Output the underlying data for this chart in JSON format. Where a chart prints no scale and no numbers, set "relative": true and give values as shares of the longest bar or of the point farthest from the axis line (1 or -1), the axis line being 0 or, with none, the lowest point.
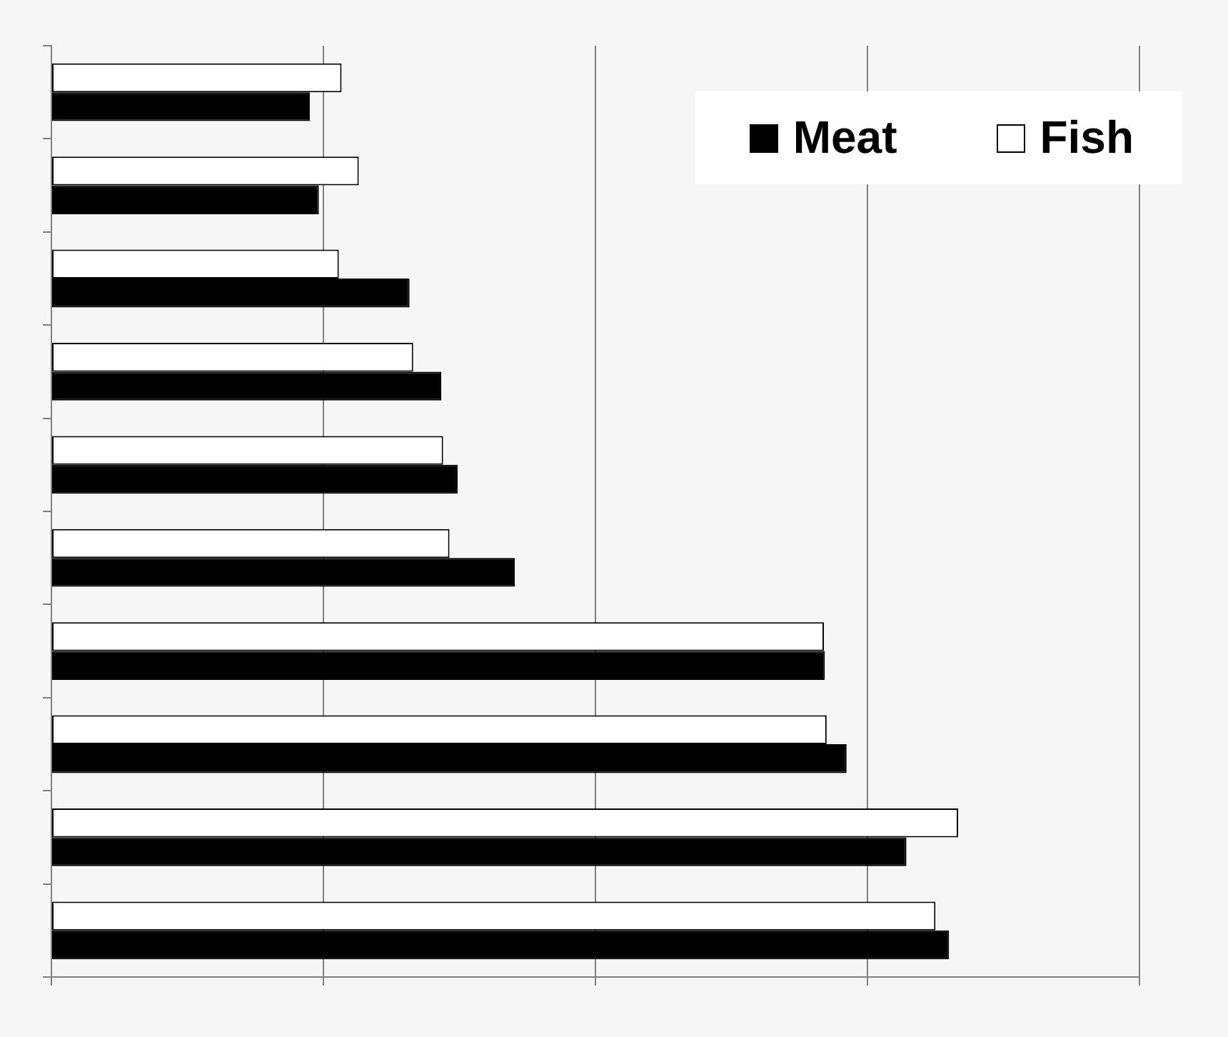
{
  "chart_data": {
    "type": "bar",
    "orientation": "horizontal",
    "relative": true,
    "categories": [
      null,
      null,
      null,
      null,
      null,
      null,
      null,
      null,
      null,
      null
    ],
    "grid": "x",
    "legend": "top right",
    "series": [
      {
        "name": "Fish",
        "color": "#ffffff",
        "values": [
          0.32,
          0.339,
          0.317,
          0.399,
          0.432,
          0.439,
          0.852,
          0.855,
          1,
          0.975
        ]
      },
      {
        "name": "Meat",
        "color": "#000000",
        "values": [
          0.285,
          0.295,
          0.395,
          0.43,
          0.448,
          0.511,
          0.853,
          0.877,
          0.943,
          0.99
        ]
      }
    ]
  }
}
